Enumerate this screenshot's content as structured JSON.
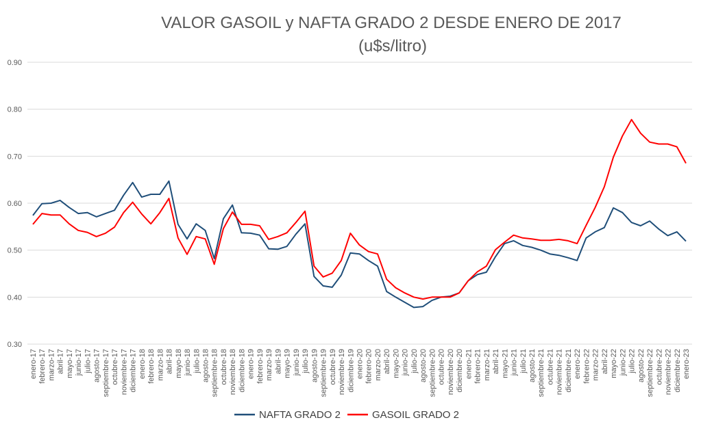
{
  "chart_data": {
    "type": "line",
    "title": "VALOR GASOIL y NAFTA GRADO 2 DESDE ENERO DE 2017",
    "subtitle": "(u$s/litro)",
    "xlabel": "",
    "ylabel": "",
    "ylim": [
      0.3,
      0.9
    ],
    "yticks": [
      "0.30",
      "0.40",
      "0.50",
      "0.60",
      "0.70",
      "0.80",
      "0.90"
    ],
    "grid": true,
    "legend_position": "bottom",
    "categories": [
      "enero-17",
      "febrero-17",
      "marzo-17",
      "abril-17",
      "mayo-17",
      "junio-17",
      "julio-17",
      "agosto-17",
      "septiembre-17",
      "octubre-17",
      "noviembre-17",
      "diciembre-17",
      "enero-18",
      "febrero-18",
      "marzo-18",
      "abril-18",
      "mayo-18",
      "junio-18",
      "julio-18",
      "agosto-18",
      "septiembre-18",
      "octubre-18",
      "noviembre-18",
      "diciembre-18",
      "enero-19",
      "febrero-19",
      "marzo-19",
      "abril-19",
      "mayo-19",
      "junio-19",
      "julio-19",
      "agosto-19",
      "septiembre-19",
      "octubre-19",
      "noviembre-19",
      "diciembre-19",
      "enero-20",
      "febrero-20",
      "marzo-20",
      "abril-20",
      "mayo-20",
      "junio-20",
      "julio-20",
      "agosto-20",
      "septiembre-20",
      "octubre-20",
      "noviembre-20",
      "diciembre-20",
      "enero-21",
      "febrero-21",
      "marzo-21",
      "abril-21",
      "mayo-21",
      "junio-21",
      "julio-21",
      "agosto-21",
      "septiembre-21",
      "octubre-21",
      "noviembre-21",
      "diciembre-21",
      "enero-22",
      "febrero-22",
      "marzo-22",
      "abril-22",
      "mayo-22",
      "junio-22",
      "julio-22",
      "agosto-22",
      "septiembre-22",
      "octubre-22",
      "noviembre-22",
      "diciembre-22",
      "enero-23"
    ],
    "series": [
      {
        "name": "NAFTA GRADO 2",
        "color": "#1F4E79",
        "values": [
          0.574,
          0.599,
          0.6,
          0.606,
          0.591,
          0.578,
          0.58,
          0.571,
          0.578,
          0.585,
          0.617,
          0.644,
          0.613,
          0.619,
          0.619,
          0.647,
          0.555,
          0.524,
          0.556,
          0.542,
          0.482,
          0.567,
          0.596,
          0.537,
          0.536,
          0.532,
          0.503,
          0.502,
          0.508,
          0.534,
          0.556,
          0.444,
          0.424,
          0.421,
          0.447,
          0.494,
          0.492,
          0.478,
          0.466,
          0.412,
          0.4,
          0.389,
          0.378,
          0.38,
          0.393,
          0.4,
          0.402,
          0.409,
          0.435,
          0.448,
          0.453,
          0.486,
          0.514,
          0.52,
          0.51,
          0.506,
          0.5,
          0.492,
          0.489,
          0.484,
          0.478,
          0.526,
          0.539,
          0.548,
          0.59,
          0.58,
          0.559,
          0.552,
          0.562,
          0.545,
          0.531,
          0.539,
          0.519
        ]
      },
      {
        "name": "GASOIL GRADO 2",
        "color": "#FF0000",
        "values": [
          0.555,
          0.578,
          0.575,
          0.575,
          0.556,
          0.542,
          0.538,
          0.529,
          0.536,
          0.549,
          0.58,
          0.602,
          0.577,
          0.556,
          0.58,
          0.61,
          0.526,
          0.491,
          0.529,
          0.524,
          0.47,
          0.546,
          0.581,
          0.555,
          0.555,
          0.552,
          0.523,
          0.529,
          0.537,
          0.559,
          0.583,
          0.466,
          0.443,
          0.451,
          0.478,
          0.536,
          0.511,
          0.497,
          0.492,
          0.438,
          0.42,
          0.409,
          0.4,
          0.396,
          0.4,
          0.4,
          0.4,
          0.409,
          0.435,
          0.454,
          0.466,
          0.501,
          0.517,
          0.532,
          0.526,
          0.524,
          0.521,
          0.521,
          0.523,
          0.52,
          0.514,
          0.553,
          0.591,
          0.635,
          0.698,
          0.743,
          0.778,
          0.749,
          0.73,
          0.726,
          0.726,
          0.72,
          0.685
        ]
      }
    ]
  }
}
